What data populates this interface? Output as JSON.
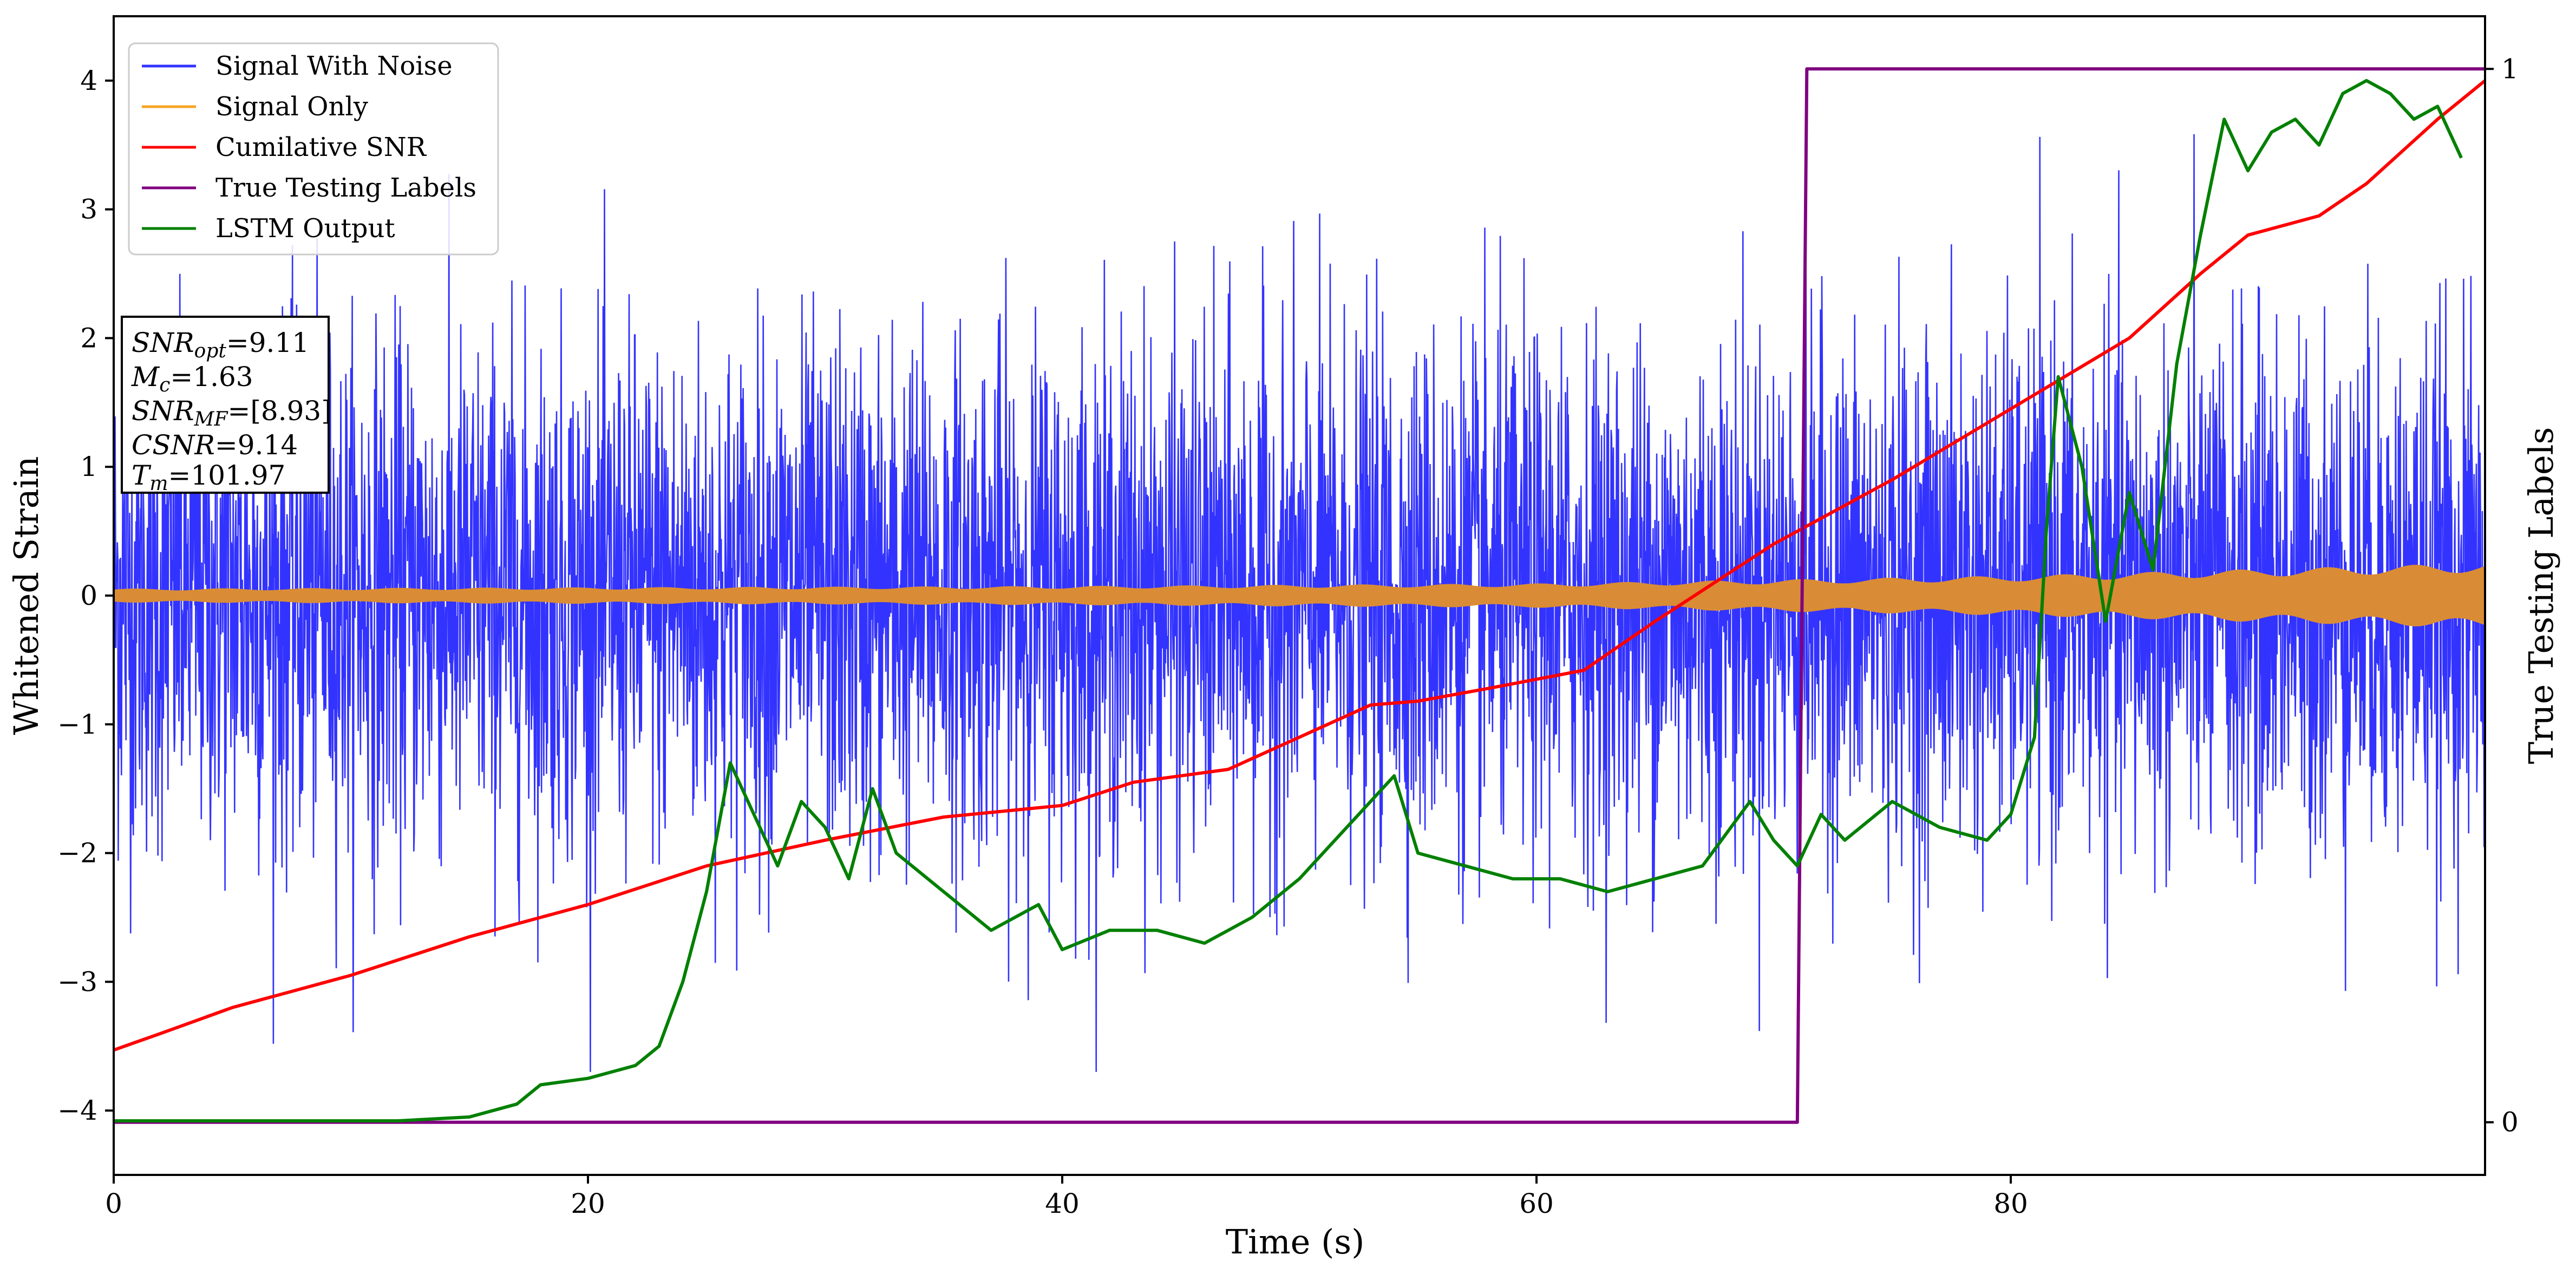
{
  "chart_data": {
    "type": "line",
    "xlabel": "Time (s)",
    "ylabel": "Whitened Strain",
    "y2label": "True Testing Labels",
    "xlim": [
      0,
      100
    ],
    "ylim": [
      -4.5,
      4.5
    ],
    "y2lim": [
      -0.05,
      1.05
    ],
    "x_ticks": [
      0,
      20,
      40,
      60,
      80
    ],
    "y_ticks": [
      -4,
      -3,
      -2,
      -1,
      0,
      1,
      2,
      3,
      4
    ],
    "y2_ticks": [
      0,
      1
    ],
    "legend_position": "upper-left",
    "series": [
      {
        "name": "Signal With Noise",
        "color": "#3333ff",
        "axis": "left",
        "description_values": {
          "typical_amplitude": 1.2,
          "min": -3.7,
          "max": 4.1
        }
      },
      {
        "name": "Signal Only",
        "color": "#f5a623",
        "axis": "left",
        "envelope": {
          "x": [
            0,
            20,
            40,
            60,
            70,
            80,
            90,
            100
          ],
          "amp": [
            0.05,
            0.06,
            0.07,
            0.09,
            0.12,
            0.15,
            0.2,
            0.25
          ]
        }
      },
      {
        "name": "Cumilative SNR",
        "color": "#ff0000",
        "axis": "left",
        "x": [
          0,
          2,
          5,
          10,
          15,
          20,
          25,
          30,
          35,
          40,
          43,
          47,
          50,
          53,
          55,
          58,
          62,
          65,
          70,
          75,
          80,
          85,
          88,
          90,
          93,
          95,
          98,
          100
        ],
        "y": [
          -3.53,
          -3.4,
          -3.2,
          -2.95,
          -2.65,
          -2.4,
          -2.1,
          -1.9,
          -1.72,
          -1.63,
          -1.45,
          -1.35,
          -1.1,
          -0.85,
          -0.82,
          -0.72,
          -0.58,
          -0.2,
          0.4,
          0.9,
          1.45,
          2.0,
          2.5,
          2.8,
          2.95,
          3.2,
          3.7,
          4.0
        ]
      },
      {
        "name": "True Testing Labels",
        "color": "#800080",
        "axis": "right",
        "x": [
          0,
          71,
          71.4,
          100
        ],
        "y": [
          0,
          0,
          1,
          1
        ]
      },
      {
        "name": "LSTM Output",
        "color": "#008000",
        "axis": "left",
        "x": [
          0,
          12,
          15,
          17,
          18,
          20,
          22,
          23,
          24,
          25,
          26,
          27,
          28,
          29,
          30,
          31,
          32,
          33,
          35,
          37,
          39,
          40,
          42,
          44,
          46,
          47,
          48,
          50,
          52,
          54,
          55,
          57,
          59,
          61,
          63,
          65,
          67,
          69,
          70,
          71,
          72,
          73,
          75,
          77,
          79,
          80,
          81,
          81.5,
          82,
          83,
          84,
          85,
          86,
          87,
          88,
          89,
          90,
          91,
          92,
          93,
          94,
          95,
          96,
          97,
          98,
          99
        ],
        "y": [
          -4.08,
          -4.08,
          -4.05,
          -3.95,
          -3.8,
          -3.75,
          -3.65,
          -3.5,
          -3.0,
          -2.3,
          -1.3,
          -1.7,
          -2.1,
          -1.6,
          -1.8,
          -2.2,
          -1.5,
          -2.0,
          -2.3,
          -2.6,
          -2.4,
          -2.75,
          -2.6,
          -2.6,
          -2.7,
          -2.6,
          -2.5,
          -2.2,
          -1.8,
          -1.4,
          -2.0,
          -2.1,
          -2.2,
          -2.2,
          -2.3,
          -2.2,
          -2.1,
          -1.6,
          -1.9,
          -2.1,
          -1.7,
          -1.9,
          -1.6,
          -1.8,
          -1.9,
          -1.7,
          -1.1,
          0.5,
          1.7,
          1.0,
          -0.2,
          0.8,
          0.2,
          1.8,
          2.8,
          3.7,
          3.3,
          3.6,
          3.7,
          3.5,
          3.9,
          4.0,
          3.9,
          3.7,
          3.8,
          3.4
        ]
      }
    ],
    "annotation_lines": [
      "SNR_opt=9.11",
      "M_c=1.63",
      "SNR_MF=[8.93]",
      "CSNR=9.14",
      "T_m=101.97"
    ]
  },
  "legend": [
    {
      "label": "Signal With Noise",
      "color": "#3333ff"
    },
    {
      "label": "Signal Only",
      "color": "#f5a623"
    },
    {
      "label": "Cumilative SNR",
      "color": "#ff0000"
    },
    {
      "label": "True Testing Labels",
      "color": "#800080"
    },
    {
      "label": "LSTM Output",
      "color": "#008000"
    }
  ],
  "info_box": {
    "snr_opt_main": "SNR",
    "snr_opt_sub": "opt",
    "snr_opt_value": "=9.11",
    "mc_main": "M",
    "mc_sub": "c",
    "mc_value": "=1.63",
    "snrmf_main": "SNR",
    "snrmf_sub": "MF",
    "snrmf_value": "=[8.93]",
    "csnr_main": "CSNR",
    "csnr_value": "=9.14",
    "tm_main": "T",
    "tm_sub": "m",
    "tm_value": "=101.97"
  }
}
